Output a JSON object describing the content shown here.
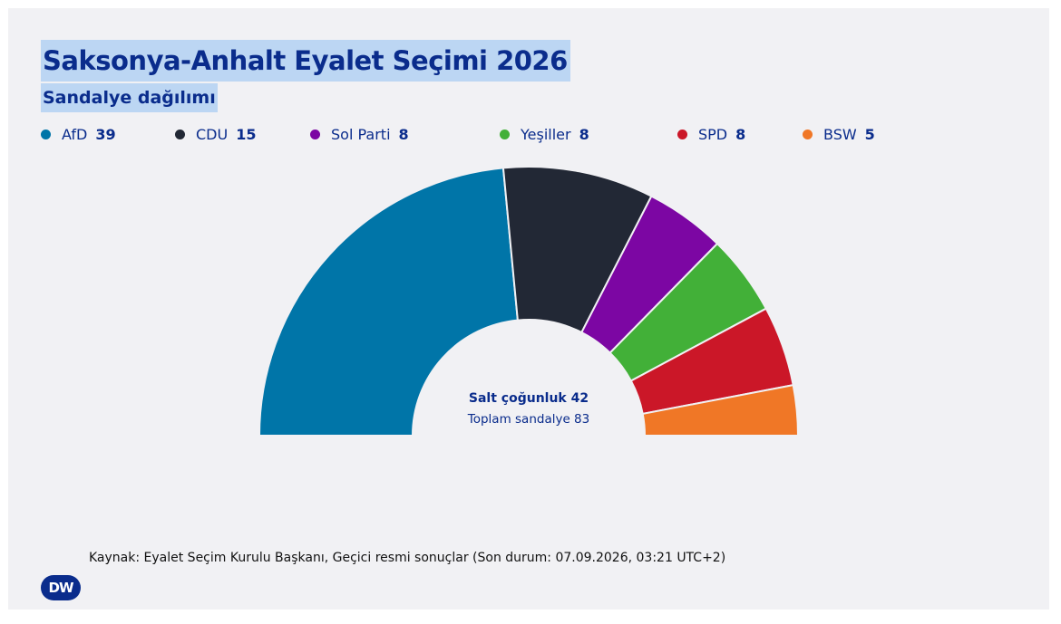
{
  "header": {
    "title": "Saksonya-Anhalt Eyalet Seçimi 2026",
    "subtitle": "Sandalye dağılımı"
  },
  "legend": [
    {
      "name": "AfD",
      "seats": "39",
      "color": "#0075a8"
    },
    {
      "name": "CDU",
      "seats": "15",
      "color": "#222835"
    },
    {
      "name": "Sol Parti",
      "seats": "8",
      "color": "#7c06a3"
    },
    {
      "name": "Yeşiller",
      "seats": "8",
      "color": "#42b038"
    },
    {
      "name": "SPD",
      "seats": "8",
      "color": "#cb1728"
    },
    {
      "name": "BSW",
      "seats": "5",
      "color": "#f07726"
    }
  ],
  "center": {
    "majority": "Salt çoğunluk 42",
    "total": "Toplam sandalye 83"
  },
  "footer": {
    "source": "Kaynak: Eyalet Seçim Kurulu Başkanı, Geçici resmi sonuçlar (Son durum: 07.09.2026, 03:21 UTC+2)",
    "logo": "DW"
  },
  "chart_data": {
    "type": "pie",
    "variant": "semicircle-parliament",
    "title": "Saksonya-Anhalt Eyalet Seçimi 2026",
    "subtitle": "Sandalye dağılımı",
    "categories": [
      "AfD",
      "CDU",
      "Sol Parti",
      "Yeşiller",
      "SPD",
      "BSW"
    ],
    "values": [
      39,
      15,
      8,
      8,
      8,
      5
    ],
    "colors": [
      "#0075a8",
      "#222835",
      "#7c06a3",
      "#42b038",
      "#cb1728",
      "#f07726"
    ],
    "total_seats": 83,
    "majority": 42,
    "legend_position": "top"
  }
}
